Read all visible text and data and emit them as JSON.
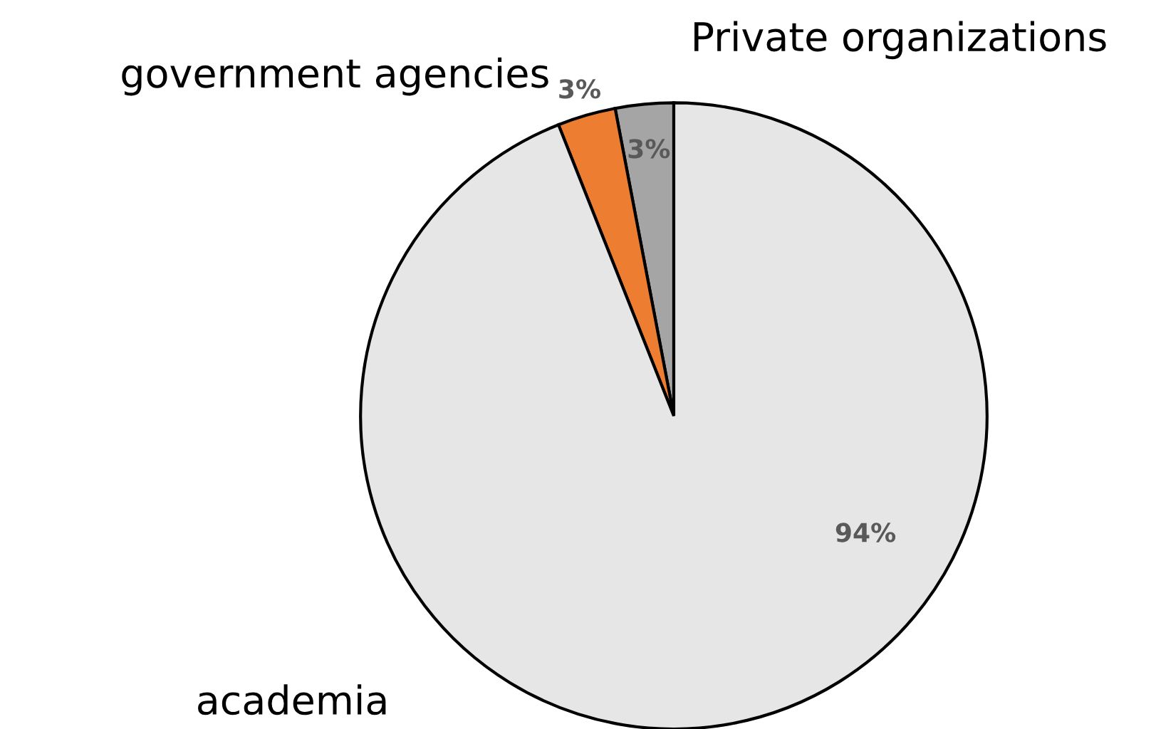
{
  "chart_data": {
    "type": "pie",
    "categories": [
      "Private organizations",
      "government agencies",
      "academia"
    ],
    "values": [
      3,
      3,
      94
    ],
    "colors": [
      "#a5a5a5",
      "#ed7d31",
      "#e7e6e6"
    ],
    "value_labels": [
      "3%",
      "3%",
      "94%"
    ],
    "legend": false
  }
}
